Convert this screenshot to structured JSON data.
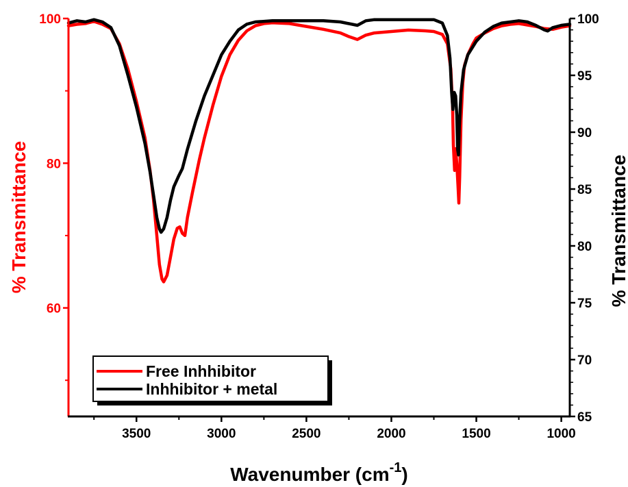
{
  "chart_data": {
    "type": "line",
    "xlabel": "Wavenumber (cm",
    "xlabel_superscript": "-1",
    "xlabel_suffix": ")",
    "ylabel_left": "% Transmittance",
    "ylabel_right": "% Transmittance",
    "xlim": [
      3900,
      950
    ],
    "x_reversed": true,
    "ylim_left": [
      45,
      100
    ],
    "ylim_right": [
      65,
      100
    ],
    "x_ticks": [
      {
        "value": 3500,
        "label": "3500"
      },
      {
        "value": 3000,
        "label": "3000"
      },
      {
        "value": 2500,
        "label": "2500"
      },
      {
        "value": 2000,
        "label": "2000"
      },
      {
        "value": 1500,
        "label": "1500"
      },
      {
        "value": 1000,
        "label": "1000"
      }
    ],
    "y_left_ticks": [
      {
        "value": 100,
        "label": "100"
      },
      {
        "value": 80,
        "label": "80"
      },
      {
        "value": 60,
        "label": "60"
      }
    ],
    "y_right_ticks": [
      {
        "value": 100,
        "label": "100"
      },
      {
        "value": 95,
        "label": "95"
      },
      {
        "value": 90,
        "label": "90"
      },
      {
        "value": 85,
        "label": "85"
      },
      {
        "value": 80,
        "label": "80"
      },
      {
        "value": 75,
        "label": "75"
      },
      {
        "value": 70,
        "label": "70"
      },
      {
        "value": 65,
        "label": "65"
      }
    ],
    "legend_position": "bottom-left",
    "grid": false,
    "colors": {
      "left_axis": "#ff0000",
      "right_axis": "#000000"
    },
    "series": [
      {
        "name": "Free Inhhibitor",
        "color": "#ff0000",
        "axis": "left",
        "points": [
          [
            3900,
            99.0
          ],
          [
            3850,
            99.2
          ],
          [
            3800,
            99.3
          ],
          [
            3750,
            99.6
          ],
          [
            3700,
            99.2
          ],
          [
            3650,
            98.6
          ],
          [
            3600,
            96.5
          ],
          [
            3550,
            93.0
          ],
          [
            3500,
            88.5
          ],
          [
            3450,
            83.5
          ],
          [
            3420,
            79.0
          ],
          [
            3400,
            75.0
          ],
          [
            3380,
            70.0
          ],
          [
            3365,
            66.0
          ],
          [
            3350,
            64.0
          ],
          [
            3340,
            63.6
          ],
          [
            3320,
            64.5
          ],
          [
            3300,
            67.0
          ],
          [
            3280,
            69.5
          ],
          [
            3260,
            71.0
          ],
          [
            3245,
            71.2
          ],
          [
            3230,
            70.3
          ],
          [
            3215,
            70.0
          ],
          [
            3200,
            72.5
          ],
          [
            3170,
            76.0
          ],
          [
            3130,
            80.5
          ],
          [
            3100,
            83.5
          ],
          [
            3050,
            88.0
          ],
          [
            3000,
            92.0
          ],
          [
            2950,
            95.0
          ],
          [
            2900,
            97.0
          ],
          [
            2850,
            98.3
          ],
          [
            2800,
            99.0
          ],
          [
            2750,
            99.3
          ],
          [
            2700,
            99.4
          ],
          [
            2600,
            99.3
          ],
          [
            2500,
            98.9
          ],
          [
            2400,
            98.5
          ],
          [
            2300,
            98.0
          ],
          [
            2250,
            97.5
          ],
          [
            2200,
            97.1
          ],
          [
            2150,
            97.7
          ],
          [
            2100,
            98.0
          ],
          [
            2000,
            98.2
          ],
          [
            1900,
            98.4
          ],
          [
            1800,
            98.3
          ],
          [
            1750,
            98.2
          ],
          [
            1700,
            97.8
          ],
          [
            1670,
            96.5
          ],
          [
            1650,
            93.0
          ],
          [
            1640,
            88.0
          ],
          [
            1635,
            82.5
          ],
          [
            1628,
            79.0
          ],
          [
            1622,
            82.0
          ],
          [
            1615,
            80.0
          ],
          [
            1608,
            77.0
          ],
          [
            1603,
            74.5
          ],
          [
            1598,
            78.0
          ],
          [
            1590,
            86.0
          ],
          [
            1580,
            91.0
          ],
          [
            1570,
            93.5
          ],
          [
            1550,
            95.0
          ],
          [
            1520,
            96.5
          ],
          [
            1500,
            97.3
          ],
          [
            1450,
            98.0
          ],
          [
            1400,
            98.6
          ],
          [
            1350,
            99.0
          ],
          [
            1300,
            99.2
          ],
          [
            1250,
            99.3
          ],
          [
            1200,
            99.1
          ],
          [
            1150,
            98.9
          ],
          [
            1100,
            98.6
          ],
          [
            1050,
            98.5
          ],
          [
            1000,
            98.8
          ],
          [
            950,
            99.0
          ]
        ]
      },
      {
        "name": "Inhhibitor + metal",
        "color": "#000000",
        "axis": "right",
        "points": [
          [
            3900,
            99.6
          ],
          [
            3850,
            99.8
          ],
          [
            3800,
            99.7
          ],
          [
            3750,
            99.9
          ],
          [
            3700,
            99.7
          ],
          [
            3650,
            99.2
          ],
          [
            3600,
            97.6
          ],
          [
            3550,
            95.0
          ],
          [
            3500,
            92.2
          ],
          [
            3450,
            89.0
          ],
          [
            3420,
            86.5
          ],
          [
            3400,
            84.5
          ],
          [
            3380,
            82.5
          ],
          [
            3365,
            81.5
          ],
          [
            3355,
            81.2
          ],
          [
            3340,
            81.5
          ],
          [
            3320,
            82.5
          ],
          [
            3300,
            84.0
          ],
          [
            3280,
            85.2
          ],
          [
            3250,
            86.2
          ],
          [
            3230,
            86.8
          ],
          [
            3200,
            88.5
          ],
          [
            3150,
            91.0
          ],
          [
            3100,
            93.2
          ],
          [
            3050,
            95.0
          ],
          [
            3000,
            96.8
          ],
          [
            2950,
            98.0
          ],
          [
            2900,
            99.0
          ],
          [
            2850,
            99.5
          ],
          [
            2800,
            99.7
          ],
          [
            2700,
            99.8
          ],
          [
            2600,
            99.8
          ],
          [
            2500,
            99.8
          ],
          [
            2400,
            99.8
          ],
          [
            2300,
            99.7
          ],
          [
            2200,
            99.4
          ],
          [
            2150,
            99.8
          ],
          [
            2100,
            99.9
          ],
          [
            2000,
            99.9
          ],
          [
            1900,
            99.9
          ],
          [
            1800,
            99.9
          ],
          [
            1750,
            99.9
          ],
          [
            1700,
            99.6
          ],
          [
            1670,
            98.5
          ],
          [
            1655,
            96.5
          ],
          [
            1645,
            93.5
          ],
          [
            1638,
            92.0
          ],
          [
            1630,
            93.5
          ],
          [
            1622,
            93.2
          ],
          [
            1615,
            91.5
          ],
          [
            1610,
            88.5
          ],
          [
            1605,
            88.0
          ],
          [
            1600,
            90.5
          ],
          [
            1590,
            93.5
          ],
          [
            1575,
            95.5
          ],
          [
            1550,
            96.8
          ],
          [
            1500,
            98.0
          ],
          [
            1450,
            98.8
          ],
          [
            1400,
            99.3
          ],
          [
            1350,
            99.6
          ],
          [
            1300,
            99.7
          ],
          [
            1250,
            99.8
          ],
          [
            1200,
            99.7
          ],
          [
            1150,
            99.4
          ],
          [
            1100,
            99.0
          ],
          [
            1080,
            98.9
          ],
          [
            1050,
            99.2
          ],
          [
            1000,
            99.4
          ],
          [
            950,
            99.5
          ]
        ]
      }
    ]
  }
}
